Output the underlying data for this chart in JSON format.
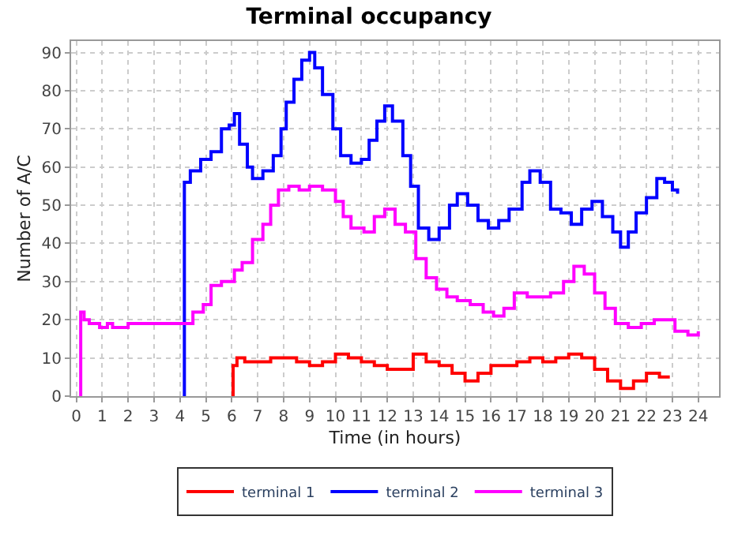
{
  "chart_data": {
    "type": "step",
    "title": "Terminal occupancy",
    "xlabel": "Time (in hours)",
    "ylabel": "Number of A/C",
    "xlim": [
      -0.2,
      24.8
    ],
    "xticks": [
      0,
      1,
      2,
      3,
      4,
      5,
      6,
      7,
      8,
      9,
      10,
      11,
      12,
      13,
      14,
      15,
      16,
      17,
      18,
      19,
      20,
      21,
      22,
      23,
      24
    ],
    "ylim": [
      0,
      93
    ],
    "yticks": [
      0,
      10,
      20,
      30,
      40,
      50,
      60,
      70,
      80,
      90
    ],
    "grid": true,
    "legend": "bottom",
    "marker": "none",
    "line_style": "solid",
    "series": [
      {
        "name": "terminal 1",
        "color": "#ff0000",
        "x": [
          6.0,
          6.05,
          6.2,
          6.5,
          7,
          7.5,
          8,
          8.5,
          9,
          9.5,
          10,
          10.5,
          11,
          11.5,
          12,
          12.5,
          13,
          13.5,
          14,
          14.5,
          15,
          15.5,
          16,
          16.5,
          17,
          17.5,
          18,
          18.5,
          19,
          19.5,
          20,
          20.5,
          21,
          21.5,
          22,
          22.5,
          22.9
        ],
        "values": [
          0,
          8,
          10,
          9,
          9,
          10,
          10,
          9,
          8,
          9,
          11,
          10,
          9,
          8,
          7,
          7,
          11,
          9,
          8,
          6,
          4,
          6,
          8,
          8,
          9,
          10,
          9,
          10,
          11,
          10,
          7,
          4,
          2,
          4,
          6,
          5,
          5
        ]
      },
      {
        "name": "terminal 2",
        "color": "#0000ff",
        "x": [
          4.15,
          4.17,
          4.4,
          4.8,
          5.2,
          5.6,
          5.9,
          6.1,
          6.3,
          6.6,
          6.8,
          7.2,
          7.6,
          7.9,
          8.1,
          8.4,
          8.7,
          9,
          9.2,
          9.5,
          9.9,
          10.2,
          10.6,
          11,
          11.3,
          11.6,
          11.9,
          12.2,
          12.6,
          12.9,
          13.2,
          13.6,
          14,
          14.4,
          14.7,
          15.1,
          15.5,
          15.9,
          16.3,
          16.7,
          17.2,
          17.5,
          17.9,
          18.3,
          18.7,
          19.1,
          19.5,
          19.9,
          20.3,
          20.7,
          21,
          21.3,
          21.6,
          22,
          22.4,
          22.7,
          23,
          23.2
        ],
        "values": [
          0,
          56,
          59,
          62,
          64,
          70,
          71,
          74,
          66,
          60,
          57,
          59,
          63,
          70,
          77,
          83,
          88,
          90,
          86,
          79,
          70,
          63,
          61,
          62,
          67,
          72,
          76,
          72,
          63,
          55,
          44,
          41,
          44,
          50,
          53,
          50,
          46,
          44,
          46,
          49,
          56,
          59,
          56,
          49,
          48,
          45,
          49,
          51,
          47,
          43,
          39,
          43,
          48,
          52,
          57,
          56,
          54,
          53
        ]
      },
      {
        "name": "terminal 3",
        "color": "#ff00ff",
        "x": [
          0.15,
          0.17,
          0.3,
          0.5,
          0.9,
          1.2,
          1.4,
          2,
          3,
          4.2,
          4.5,
          4.9,
          5.2,
          5.6,
          6.1,
          6.4,
          6.8,
          7.2,
          7.5,
          7.8,
          8.2,
          8.6,
          9,
          9.5,
          10,
          10.3,
          10.6,
          11.1,
          11.5,
          11.9,
          12.3,
          12.7,
          13.1,
          13.5,
          13.9,
          14.3,
          14.7,
          15.2,
          15.7,
          16.1,
          16.5,
          16.9,
          17.4,
          17.9,
          18.3,
          18.8,
          19.2,
          19.6,
          20,
          20.4,
          20.8,
          21.3,
          21.8,
          22.3,
          22.8,
          23.1,
          23.6,
          24
        ],
        "values": [
          0,
          22,
          20,
          19,
          18,
          19,
          18,
          19,
          19,
          19,
          22,
          24,
          29,
          30,
          33,
          35,
          41,
          45,
          50,
          54,
          55,
          54,
          55,
          54,
          51,
          47,
          44,
          43,
          47,
          49,
          45,
          43,
          36,
          31,
          28,
          26,
          25,
          24,
          22,
          21,
          23,
          27,
          26,
          26,
          27,
          30,
          34,
          32,
          27,
          23,
          19,
          18,
          19,
          20,
          20,
          17,
          16,
          17
        ]
      }
    ]
  }
}
